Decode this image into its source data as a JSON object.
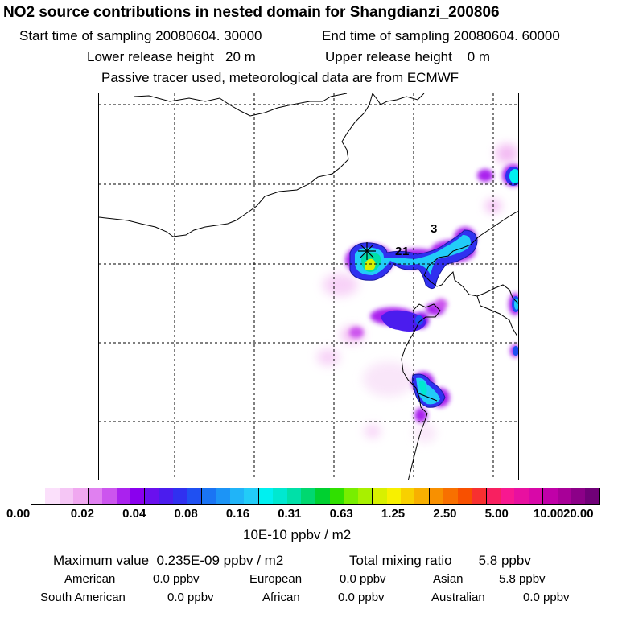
{
  "title": "NO2 source contributions in nested domain for Shangdianzi_200806",
  "header": {
    "start_label": "Start time of sampling 20080604. 30000",
    "end_label": "End time of sampling 20080604. 60000",
    "lower_release": "Lower release height   20 m",
    "upper_release": "Upper release height    0 m",
    "tracer_note": "Passive tracer used, meteorological data are from ECMWF"
  },
  "map": {
    "release_markers": [
      "2",
      "1",
      "3"
    ],
    "background_color": "#ffffff",
    "boundary_color": "#000000",
    "grid_style": "dashed"
  },
  "colorbar": {
    "tick_labels": [
      "0.00",
      "0.02",
      "0.04",
      "0.08",
      "0.16",
      "0.31",
      "0.63",
      "1.25",
      "2.50",
      "5.00",
      "10.00",
      "20.00"
    ],
    "unit_label": "10E-10 ppbv / m2",
    "colors": [
      "#ffffff",
      "#fbe0fb",
      "#f5c6f5",
      "#f0a8f0",
      "#e080f0",
      "#cc55ee",
      "#aa22ee",
      "#8a00ee",
      "#6a10ee",
      "#4b1cee",
      "#3030f0",
      "#1f50f2",
      "#1a74f4",
      "#1c94f6",
      "#20b4f8",
      "#22ccf8",
      "#00f0f0",
      "#00e8d0",
      "#00e0a8",
      "#00d870",
      "#00d030",
      "#30e000",
      "#78ee00",
      "#a8f000",
      "#d8f000",
      "#f8f000",
      "#f8d000",
      "#f8b000",
      "#f89000",
      "#f87000",
      "#f85000",
      "#f83030",
      "#f82060",
      "#f81890",
      "#e810a0",
      "#d808a8",
      "#c000a8",
      "#a80098",
      "#8c0088",
      "#700078"
    ]
  },
  "footer": {
    "max_value": "Maximum value  0.235E-09 ppbv / m2",
    "total_mixing": "Total mixing ratio       5.8 ppbv",
    "american_label": "American",
    "american_value": "0.0 ppbv",
    "european_label": "European",
    "european_value": "0.0 ppbv",
    "asian_label": "Asian",
    "asian_value": "5.8 ppbv",
    "south_american_label": "South American",
    "south_american_value": "0.0 ppbv",
    "african_label": "African",
    "african_value": "0.0 ppbv",
    "australian_label": "Australian",
    "australian_value": "0.0 ppbv"
  }
}
